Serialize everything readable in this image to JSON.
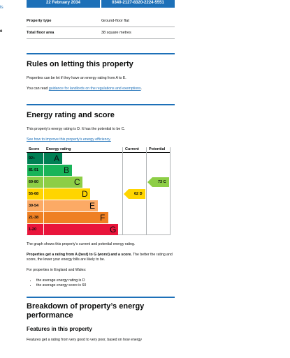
{
  "edge": {
    "link_fragment": "ts",
    "bold_fragment": "e"
  },
  "top": {
    "date": "22 February 2034",
    "reference": "0340-2127-8320-2224-5551"
  },
  "property": [
    {
      "label": "Property type",
      "value": "Ground-floor flat"
    },
    {
      "label": "Total floor area",
      "value": "38 square metres"
    }
  ],
  "rules": {
    "heading": "Rules on letting this property",
    "p1": "Properties can be let if they have an energy rating from A to E.",
    "p2_prefix": "You can read ",
    "p2_link": "guidance for landlords on the regulations and exemptions",
    "p2_suffix": "."
  },
  "energy": {
    "heading": "Energy rating and score",
    "p1": "This property’s energy rating is D. It has the potential to be C.",
    "improve_link": "See how to improve this property’s energy efficiency.",
    "graph_caption": "The graph shows this property’s current and potential energy rating.",
    "p_bold": "Properties get a rating from A (best) to G (worst) and a score.",
    "p_rest": " The better the rating and score, the lower your energy bills are likely to be.",
    "p_england": "For properties in England and Wales:",
    "bullets": [
      "the average energy rating is D",
      "the average energy score is 60"
    ]
  },
  "chart_data": {
    "type": "bar",
    "headers": {
      "score": "Score",
      "rating": "Energy rating",
      "current": "Current",
      "potential": "Potential"
    },
    "bands": [
      {
        "score": "92+",
        "letter": "A",
        "color": "#008054"
      },
      {
        "score": "81-91",
        "letter": "B",
        "color": "#19b459"
      },
      {
        "score": "69-80",
        "letter": "C",
        "color": "#8dce46"
      },
      {
        "score": "55-68",
        "letter": "D",
        "color": "#ffd500"
      },
      {
        "score": "39-54",
        "letter": "E",
        "color": "#fcaa65"
      },
      {
        "score": "21-38",
        "letter": "F",
        "color": "#ef8023"
      },
      {
        "score": "1-20",
        "letter": "G",
        "color": "#e9153b"
      }
    ],
    "current": {
      "label": "62 D",
      "score": 62,
      "band": "D",
      "color": "#ffd500"
    },
    "potential": {
      "label": "73 C",
      "score": 73,
      "band": "C",
      "color": "#8dce46"
    }
  },
  "breakdown": {
    "heading": "Breakdown of property’s energy performance",
    "features_heading": "Features in this property",
    "features_p": "Features get a rating from very good to very poor, based on how energy"
  }
}
